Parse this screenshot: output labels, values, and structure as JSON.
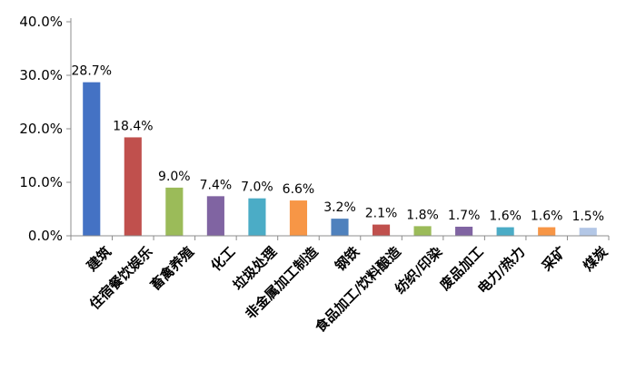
{
  "chart_data": {
    "type": "bar",
    "title": "",
    "xlabel": "",
    "ylabel": "",
    "categories": [
      "建筑",
      "住宿餐饮娱乐",
      "畜禽养殖",
      "化工",
      "垃圾处理",
      "非金属加工制造",
      "钢铁",
      "食品加工/饮料酿造",
      "纺织/印染",
      "废品加工",
      "电力/热力",
      "采矿",
      "煤炭"
    ],
    "values": [
      28.7,
      18.4,
      9.0,
      7.4,
      7.0,
      6.6,
      3.2,
      2.1,
      1.8,
      1.7,
      1.6,
      1.6,
      1.5
    ],
    "data_labels": [
      "28.7%",
      "18.4%",
      "9.0%",
      "7.4%",
      "7.0%",
      "6.6%",
      "3.2%",
      "2.1%",
      "1.8%",
      "1.7%",
      "1.6%",
      "1.6%",
      "1.5%"
    ],
    "colors": [
      "#4472C4",
      "#C0504D",
      "#9BBB59",
      "#8064A2",
      "#4BACC6",
      "#F79646",
      "#4F81BD",
      "#C0504D",
      "#9BBB59",
      "#8064A2",
      "#4BACC6",
      "#F79646",
      "#B3C7E6"
    ],
    "ylim": [
      0,
      40
    ],
    "yticks": [
      0,
      10,
      20,
      30,
      40
    ],
    "ytick_labels": [
      "0.0%",
      "10.0%",
      "20.0%",
      "30.0%",
      "40.0%"
    ],
    "grid": false,
    "legend": "none"
  }
}
